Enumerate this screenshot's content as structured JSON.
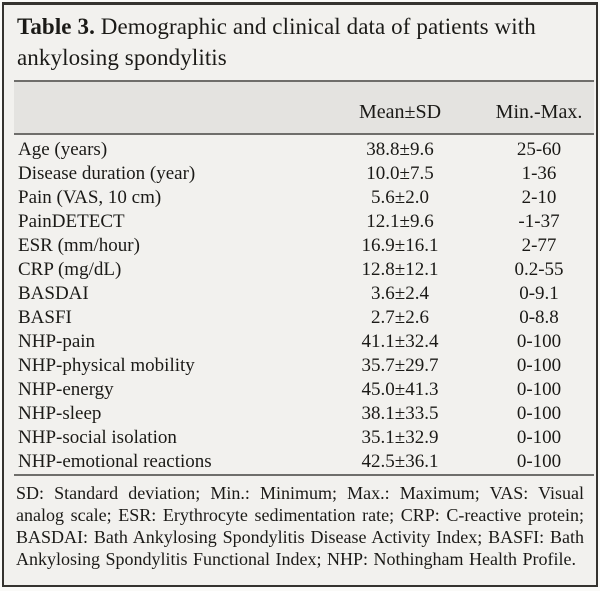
{
  "page": {
    "title_bold": "Table 3.",
    "title_rest": "Demographic and clinical data of patients with ankylosing spondylitis"
  },
  "table": {
    "columns": {
      "label": "",
      "stat": "Mean±SD",
      "range": "Min.-Max."
    },
    "rows": [
      {
        "label": "Age (years)",
        "mean_sd": "38.8±9.6",
        "min_max": "25-60"
      },
      {
        "label": "Disease duration (year)",
        "mean_sd": "10.0±7.5",
        "min_max": "1-36"
      },
      {
        "label": "Pain (VAS, 10 cm)",
        "mean_sd": "5.6±2.0",
        "min_max": "2-10"
      },
      {
        "label": "PainDETECT",
        "mean_sd": "12.1±9.6",
        "min_max": "-1-37"
      },
      {
        "label": "ESR (mm/hour)",
        "mean_sd": "16.9±16.1",
        "min_max": "2-77"
      },
      {
        "label": "CRP (mg/dL)",
        "mean_sd": "12.8±12.1",
        "min_max": "0.2-55"
      },
      {
        "label": "BASDAI",
        "mean_sd": "3.6±2.4",
        "min_max": "0-9.1"
      },
      {
        "label": "BASFI",
        "mean_sd": "2.7±2.6",
        "min_max": "0-8.8"
      },
      {
        "label": "NHP-pain",
        "mean_sd": "41.1±32.4",
        "min_max": "0-100"
      },
      {
        "label": "NHP-physical mobility",
        "mean_sd": "35.7±29.7",
        "min_max": "0-100"
      },
      {
        "label": "NHP-energy",
        "mean_sd": "45.0±41.3",
        "min_max": "0-100"
      },
      {
        "label": "NHP-sleep",
        "mean_sd": "38.1±33.5",
        "min_max": "0-100"
      },
      {
        "label": "NHP-social isolation",
        "mean_sd": "35.1±32.9",
        "min_max": "0-100"
      },
      {
        "label": "NHP-emotional reactions",
        "mean_sd": "42.5±36.1",
        "min_max": "0-100"
      }
    ],
    "footnote": "SD: Standard deviation; Min.: Minimum; Max.: Maximum; VAS: Visual analog scale; ESR: Erythrocyte sedimentation rate; CRP: C-reactive protein; BASDAI: Bath Ankylosing Spondylitis Disease Activity Index; BASFI: Bath Ankylosing Spondylitis Functional Index; NHP: Nothingham Health Profile."
  },
  "colors": {
    "page_bg": "#f2f1ee",
    "header_band_bg": "#e4e3e0",
    "rule": "#6f6e6b",
    "frame_border": "#35332f",
    "text": "#1b1a17"
  }
}
